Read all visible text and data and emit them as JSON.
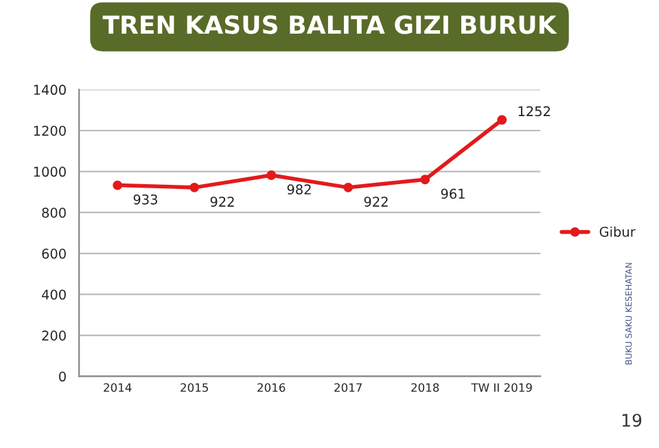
{
  "chart_data": {
    "type": "line",
    "title": "TREN KASUS BALITA GIZI BURUK",
    "categories": [
      "2014",
      "2015",
      "2016",
      "2017",
      "2018",
      "TW II 2019"
    ],
    "series": [
      {
        "name": "Gibur",
        "color": "#e31a1c",
        "values": [
          933,
          922,
          982,
          922,
          961,
          1252
        ]
      }
    ],
    "ylim": [
      0,
      1400
    ],
    "yticks": [
      0,
      200,
      400,
      600,
      800,
      1000,
      1200,
      1400
    ],
    "grid": "y",
    "legend": "right",
    "marker": "circle",
    "line_style": "solid",
    "data_labels": true,
    "annotations": [
      "BUKU SAKU KESEHATAN",
      "19"
    ]
  }
}
